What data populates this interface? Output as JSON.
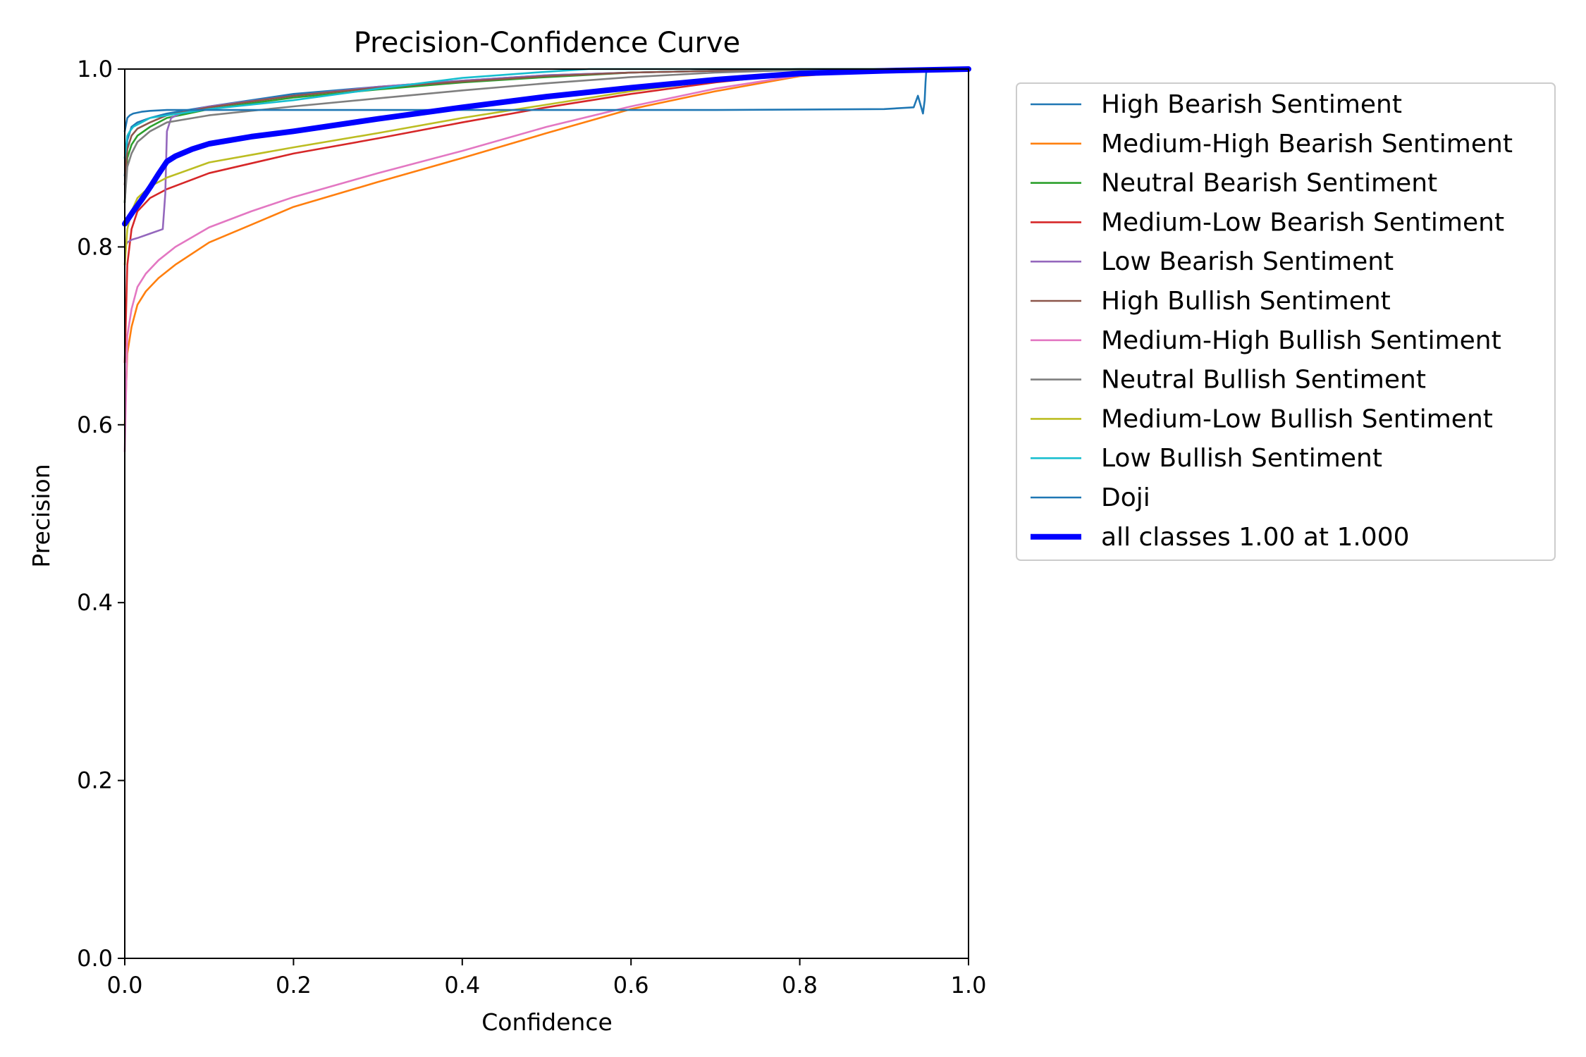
{
  "chart_data": {
    "type": "line",
    "title": "Precision-Confidence Curve",
    "xlabel": "Confidence",
    "ylabel": "Precision",
    "xlim": [
      0,
      1
    ],
    "ylim": [
      0,
      1
    ],
    "xticks": [
      "0.0",
      "0.2",
      "0.4",
      "0.6",
      "0.8",
      "1.0"
    ],
    "yticks": [
      "0.0",
      "0.2",
      "0.4",
      "0.6",
      "0.8",
      "1.0"
    ],
    "grid": false,
    "legend_position": "outside-right",
    "series": [
      {
        "name": "High Bearish Sentiment",
        "color": "#1f77b4",
        "width": 1,
        "x": [
          0,
          0.003,
          0.008,
          0.015,
          0.03,
          0.05,
          0.1,
          0.2,
          0.3,
          0.4,
          0.5,
          0.6,
          0.7,
          0.8,
          0.9,
          1.0
        ],
        "y": [
          0.88,
          0.92,
          0.935,
          0.94,
          0.945,
          0.95,
          0.958,
          0.972,
          0.98,
          0.987,
          0.993,
          0.996,
          0.998,
          0.999,
          1.0,
          1.0
        ]
      },
      {
        "name": "Medium-High Bearish Sentiment",
        "color": "#ff7f0e",
        "width": 1,
        "x": [
          0,
          0.003,
          0.008,
          0.015,
          0.025,
          0.04,
          0.06,
          0.1,
          0.15,
          0.2,
          0.3,
          0.4,
          0.5,
          0.6,
          0.7,
          0.8,
          0.9,
          1.0
        ],
        "y": [
          0.6,
          0.68,
          0.71,
          0.735,
          0.75,
          0.765,
          0.78,
          0.805,
          0.825,
          0.845,
          0.873,
          0.9,
          0.928,
          0.955,
          0.975,
          0.992,
          1.0,
          1.0
        ]
      },
      {
        "name": "Neutral Bearish Sentiment",
        "color": "#2ca02c",
        "width": 1,
        "x": [
          0,
          0.003,
          0.008,
          0.015,
          0.03,
          0.05,
          0.1,
          0.2,
          0.3,
          0.4,
          0.5,
          0.6,
          0.7,
          0.8,
          0.9,
          1.0
        ],
        "y": [
          0.85,
          0.9,
          0.915,
          0.925,
          0.935,
          0.945,
          0.955,
          0.968,
          0.977,
          0.985,
          0.991,
          0.996,
          0.998,
          1.0,
          1.0,
          1.0
        ]
      },
      {
        "name": "Medium-Low Bearish Sentiment",
        "color": "#d62728",
        "width": 1,
        "x": [
          0,
          0.003,
          0.008,
          0.015,
          0.03,
          0.05,
          0.1,
          0.2,
          0.3,
          0.4,
          0.5,
          0.6,
          0.7,
          0.8,
          0.9,
          1.0
        ],
        "y": [
          0.67,
          0.78,
          0.82,
          0.84,
          0.855,
          0.865,
          0.883,
          0.905,
          0.922,
          0.94,
          0.957,
          0.972,
          0.985,
          0.995,
          1.0,
          1.0
        ]
      },
      {
        "name": "Low Bearish Sentiment",
        "color": "#9467bd",
        "width": 1,
        "x": [
          0,
          0.003,
          0.008,
          0.015,
          0.03,
          0.045,
          0.048,
          0.05,
          0.055,
          0.07,
          0.1,
          0.2,
          0.3,
          0.4,
          0.5,
          0.6,
          0.7,
          0.8,
          0.9,
          1.0
        ],
        "y": [
          0.8,
          0.805,
          0.808,
          0.81,
          0.815,
          0.82,
          0.86,
          0.93,
          0.945,
          0.952,
          0.958,
          0.97,
          0.98,
          0.987,
          0.993,
          0.996,
          0.998,
          1.0,
          1.0,
          1.0
        ]
      },
      {
        "name": "High Bullish Sentiment",
        "color": "#8c564b",
        "width": 1,
        "x": [
          0,
          0.003,
          0.008,
          0.015,
          0.03,
          0.05,
          0.1,
          0.2,
          0.3,
          0.4,
          0.5,
          0.6,
          0.7,
          0.8,
          0.9,
          1.0
        ],
        "y": [
          0.87,
          0.91,
          0.925,
          0.933,
          0.94,
          0.948,
          0.957,
          0.97,
          0.979,
          0.986,
          0.992,
          0.996,
          0.998,
          1.0,
          1.0,
          1.0
        ]
      },
      {
        "name": "Medium-High Bullish Sentiment",
        "color": "#e377c2",
        "width": 1,
        "x": [
          0,
          0.003,
          0.008,
          0.015,
          0.025,
          0.04,
          0.06,
          0.1,
          0.15,
          0.2,
          0.3,
          0.4,
          0.5,
          0.6,
          0.7,
          0.8,
          0.9,
          1.0
        ],
        "y": [
          0.57,
          0.7,
          0.73,
          0.755,
          0.77,
          0.785,
          0.8,
          0.822,
          0.84,
          0.856,
          0.883,
          0.908,
          0.935,
          0.958,
          0.978,
          0.993,
          1.0,
          1.0
        ]
      },
      {
        "name": "Neutral Bullish Sentiment",
        "color": "#7f7f7f",
        "width": 1,
        "x": [
          0,
          0.003,
          0.008,
          0.015,
          0.03,
          0.05,
          0.1,
          0.2,
          0.3,
          0.4,
          0.5,
          0.6,
          0.7,
          0.8,
          0.9,
          1.0
        ],
        "y": [
          0.85,
          0.89,
          0.905,
          0.918,
          0.93,
          0.94,
          0.948,
          0.958,
          0.967,
          0.976,
          0.984,
          0.991,
          0.996,
          0.999,
          1.0,
          1.0
        ]
      },
      {
        "name": "Medium-Low Bullish Sentiment",
        "color": "#bcbd22",
        "width": 1,
        "x": [
          0,
          0.003,
          0.008,
          0.015,
          0.03,
          0.05,
          0.1,
          0.2,
          0.3,
          0.4,
          0.5,
          0.6,
          0.7,
          0.8,
          0.9,
          1.0
        ],
        "y": [
          0.78,
          0.82,
          0.84,
          0.855,
          0.868,
          0.878,
          0.895,
          0.912,
          0.928,
          0.945,
          0.96,
          0.975,
          0.987,
          0.996,
          1.0,
          1.0
        ]
      },
      {
        "name": "Low Bullish Sentiment",
        "color": "#17becf",
        "width": 1,
        "x": [
          0,
          0.003,
          0.006,
          0.01,
          0.02,
          0.03,
          0.05,
          0.1,
          0.2,
          0.3,
          0.4,
          0.5,
          0.55,
          0.6,
          0.7,
          0.8,
          0.9,
          1.0
        ],
        "y": [
          0.9,
          0.925,
          0.93,
          0.935,
          0.94,
          0.945,
          0.948,
          0.955,
          0.965,
          0.978,
          0.99,
          0.997,
          1.0,
          1.0,
          1.0,
          1.0,
          1.0,
          1.0
        ]
      },
      {
        "name": "Doji",
        "color": "#1f77b4",
        "width": 1,
        "x": [
          0,
          0.003,
          0.006,
          0.01,
          0.02,
          0.03,
          0.05,
          0.1,
          0.3,
          0.5,
          0.7,
          0.9,
          0.935,
          0.94,
          0.943,
          0.946,
          0.948,
          0.949,
          0.95,
          1.0
        ],
        "y": [
          0.93,
          0.945,
          0.948,
          0.95,
          0.952,
          0.953,
          0.954,
          0.954,
          0.954,
          0.954,
          0.954,
          0.955,
          0.957,
          0.97,
          0.96,
          0.95,
          0.965,
          0.985,
          0.998,
          1.0
        ]
      },
      {
        "name": "all classes 1.00 at 1.000",
        "color": "#0000ff",
        "width": 3.2,
        "x": [
          0,
          0.01,
          0.02,
          0.03,
          0.04,
          0.05,
          0.06,
          0.08,
          0.1,
          0.15,
          0.2,
          0.3,
          0.4,
          0.5,
          0.6,
          0.7,
          0.8,
          0.9,
          1.0
        ],
        "y": [
          0.826,
          0.84,
          0.853,
          0.867,
          0.882,
          0.896,
          0.902,
          0.91,
          0.916,
          0.924,
          0.93,
          0.944,
          0.957,
          0.969,
          0.979,
          0.988,
          0.995,
          0.998,
          1.0
        ]
      }
    ]
  }
}
